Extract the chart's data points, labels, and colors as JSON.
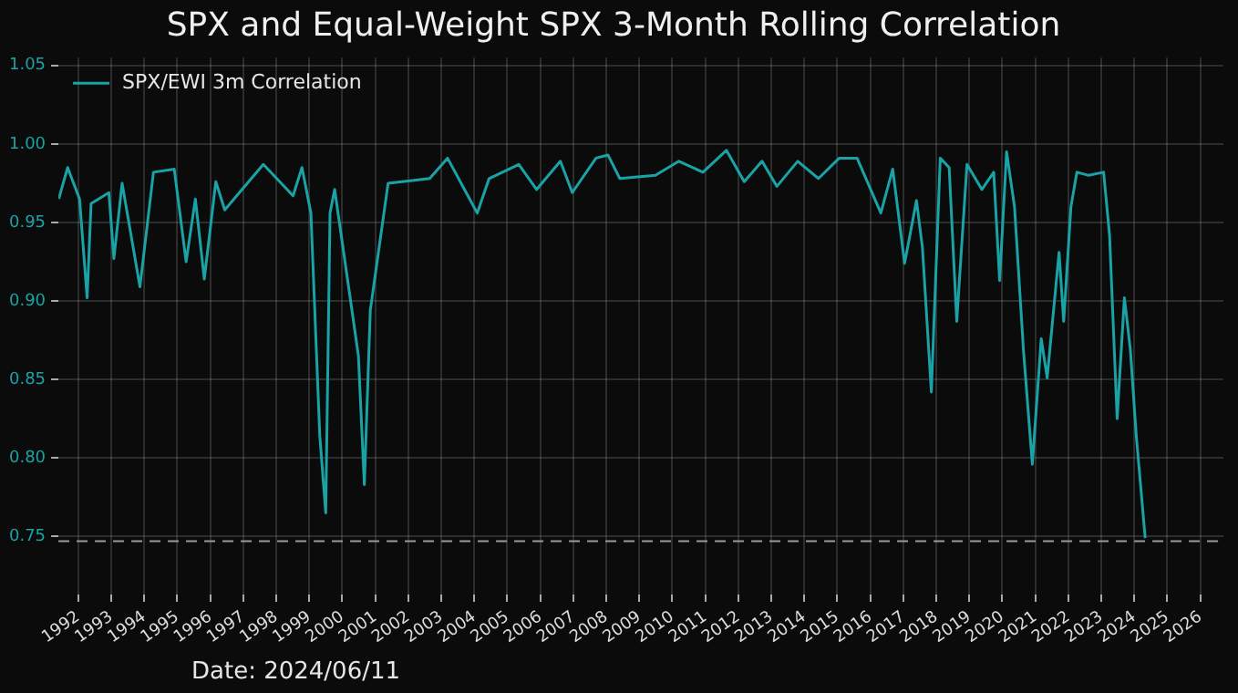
{
  "chart_data": {
    "type": "line",
    "title": "SPX and Equal-Weight SPX 3-Month Rolling Correlation",
    "annotations": [
      "Date: 2024/06/11"
    ],
    "xlim": [
      1991.4,
      2026.7
    ],
    "xticks": [
      1992,
      1993,
      1994,
      1995,
      1996,
      1997,
      1998,
      1999,
      2000,
      2001,
      2002,
      2003,
      2004,
      2005,
      2006,
      2007,
      2008,
      2009,
      2010,
      2011,
      2012,
      2013,
      2014,
      2015,
      2016,
      2017,
      2018,
      2019,
      2020,
      2021,
      2022,
      2023,
      2024,
      2025,
      2026
    ],
    "ylim": [
      0.713,
      1.055
    ],
    "yticks": [
      0.75,
      {
        "value": 0.8,
        "label": "0.80"
      },
      0.85,
      {
        "value": 0.9,
        "label": "0.90"
      },
      0.95,
      {
        "value": 1.0,
        "label": "1.00"
      },
      1.05
    ],
    "grid": true,
    "legend": "top left",
    "marker": "none",
    "line_style": "solid",
    "ref_lines": [
      {
        "axis": "y",
        "value": 0.747,
        "label": null,
        "color": "#9a9a9a",
        "line_style": "dashed"
      }
    ],
    "series": [
      {
        "name": "SPX/EWI 3m Correlation",
        "color": "#1aa3a6",
        "x": [
          1991.41,
          1991.68,
          1992.04,
          1992.27,
          1992.39,
          1992.93,
          1993.08,
          1993.33,
          1993.87,
          1994.28,
          1994.91,
          1995.27,
          1995.55,
          1995.82,
          1996.17,
          1996.44,
          1997.61,
          1998.51,
          1998.78,
          1999.05,
          1999.32,
          1999.5,
          1999.63,
          1999.77,
          2000.22,
          2000.49,
          2000.67,
          2000.85,
          2001.39,
          2002.65,
          2003.19,
          2004.09,
          2004.45,
          2005.35,
          2005.89,
          2006.61,
          2006.97,
          2007.69,
          2008.05,
          2008.41,
          2009.49,
          2010.2,
          2010.93,
          2011.64,
          2012.18,
          2012.72,
          2013.17,
          2013.8,
          2014.43,
          2015.06,
          2015.6,
          2016.32,
          2016.68,
          2017.04,
          2017.4,
          2017.58,
          2017.85,
          2018.12,
          2018.39,
          2018.62,
          2018.93,
          2019.38,
          2019.74,
          2019.92,
          2020.13,
          2020.37,
          2020.64,
          2020.91,
          2021.18,
          2021.36,
          2021.72,
          2021.86,
          2022.08,
          2022.26,
          2022.62,
          2023.07,
          2023.25,
          2023.48,
          2023.7,
          2023.88,
          2024.06,
          2024.33
        ],
        "values": [
          0.965,
          0.985,
          0.965,
          0.902,
          0.962,
          0.969,
          0.927,
          0.975,
          0.909,
          0.982,
          0.984,
          0.925,
          0.965,
          0.914,
          0.976,
          0.958,
          0.987,
          0.967,
          0.985,
          0.956,
          0.814,
          0.765,
          0.956,
          0.971,
          0.905,
          0.865,
          0.783,
          0.894,
          0.975,
          0.978,
          0.991,
          0.956,
          0.978,
          0.987,
          0.971,
          0.989,
          0.969,
          0.991,
          0.993,
          0.978,
          0.98,
          0.989,
          0.982,
          0.996,
          0.976,
          0.989,
          0.973,
          0.989,
          0.978,
          0.991,
          0.991,
          0.956,
          0.984,
          0.924,
          0.964,
          0.934,
          0.842,
          0.991,
          0.985,
          0.887,
          0.987,
          0.971,
          0.982,
          0.913,
          0.995,
          0.96,
          0.869,
          0.796,
          0.876,
          0.851,
          0.931,
          0.887,
          0.96,
          0.982,
          0.98,
          0.982,
          0.942,
          0.825,
          0.902,
          0.869,
          0.814,
          0.749
        ]
      }
    ]
  }
}
